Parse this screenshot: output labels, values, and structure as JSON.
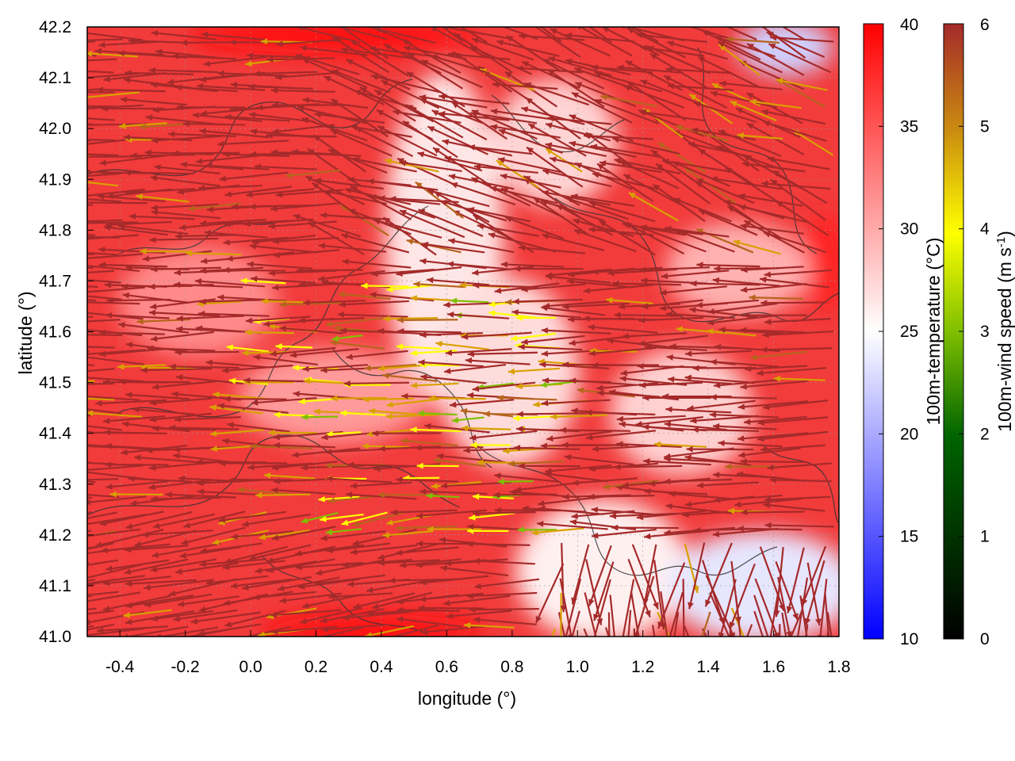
{
  "chart_data": {
    "type": "heatmap",
    "description_layers": [
      "temperature-field",
      "wind-vectors",
      "terrain-contours"
    ],
    "xlabel": "longitude (°)",
    "ylabel": "latitude (°)",
    "xlim": [
      -0.5,
      1.8
    ],
    "ylim": [
      41.0,
      42.2
    ],
    "xticks": [
      "-0.4",
      "-0.2",
      "0.0",
      "0.2",
      "0.4",
      "0.6",
      "0.8",
      "1.0",
      "1.2",
      "1.4",
      "1.6",
      "1.8"
    ],
    "xtick_values": [
      -0.4,
      -0.2,
      0.0,
      0.2,
      0.4,
      0.6,
      0.8,
      1.0,
      1.2,
      1.4,
      1.6,
      1.8
    ],
    "yticks": [
      "41.0",
      "41.1",
      "41.2",
      "41.3",
      "41.4",
      "41.5",
      "41.6",
      "41.7",
      "41.8",
      "41.9",
      "42.0",
      "42.1",
      "42.2"
    ],
    "ytick_values": [
      41.0,
      41.1,
      41.2,
      41.3,
      41.4,
      41.5,
      41.6,
      41.7,
      41.8,
      41.9,
      42.0,
      42.1,
      42.2
    ],
    "grid": true,
    "temperature_colorbar": {
      "label": "100m-temperature (°C)",
      "range": [
        10,
        40
      ],
      "ticks": [
        "10",
        "15",
        "20",
        "25",
        "30",
        "35",
        "40"
      ],
      "tick_values": [
        10,
        15,
        20,
        25,
        30,
        35,
        40
      ],
      "colors": [
        "#0000ff",
        "#ffffff",
        "#ff0000"
      ]
    },
    "wind_colorbar": {
      "label_main": "100m-wind speed (m s",
      "label_sup": "-1",
      "label_end": ")",
      "range": [
        0,
        6
      ],
      "ticks": [
        "0",
        "1",
        "2",
        "3",
        "4",
        "5",
        "6"
      ],
      "tick_values": [
        0,
        1,
        2,
        3,
        4,
        5,
        6
      ],
      "colors": [
        "#000000",
        "#006400",
        "#7fbf00",
        "#ffff00",
        "#d9a000",
        "#b5651d",
        "#a52a2a"
      ]
    },
    "temperature_field": {
      "approx_values": [
        {
          "lon": -0.4,
          "lat": 41.1,
          "value": 35
        },
        {
          "lon": -0.4,
          "lat": 41.9,
          "value": 34
        },
        {
          "lon": 0.2,
          "lat": 41.5,
          "value": 34
        },
        {
          "lon": 0.55,
          "lat": 41.8,
          "value": 28
        },
        {
          "lon": 0.7,
          "lat": 41.55,
          "value": 28
        },
        {
          "lon": 0.95,
          "lat": 41.15,
          "value": 26
        },
        {
          "lon": 1.6,
          "lat": 41.1,
          "value": 23
        },
        {
          "lon": 1.55,
          "lat": 42.15,
          "value": 22
        },
        {
          "lon": 1.7,
          "lat": 41.8,
          "value": 36
        },
        {
          "lon": 0.3,
          "lat": 42.18,
          "value": 38
        },
        {
          "lon": 0.5,
          "lat": 41.02,
          "value": 38
        }
      ]
    },
    "wind_field": {
      "dominant_direction": "easterly (flow toward west)",
      "typical_speed": 6,
      "weaker_zone": {
        "lon_range": [
          0.0,
          1.0
        ],
        "lat_range": [
          41.2,
          41.7
        ],
        "speed_range": [
          2,
          5
        ]
      }
    }
  }
}
